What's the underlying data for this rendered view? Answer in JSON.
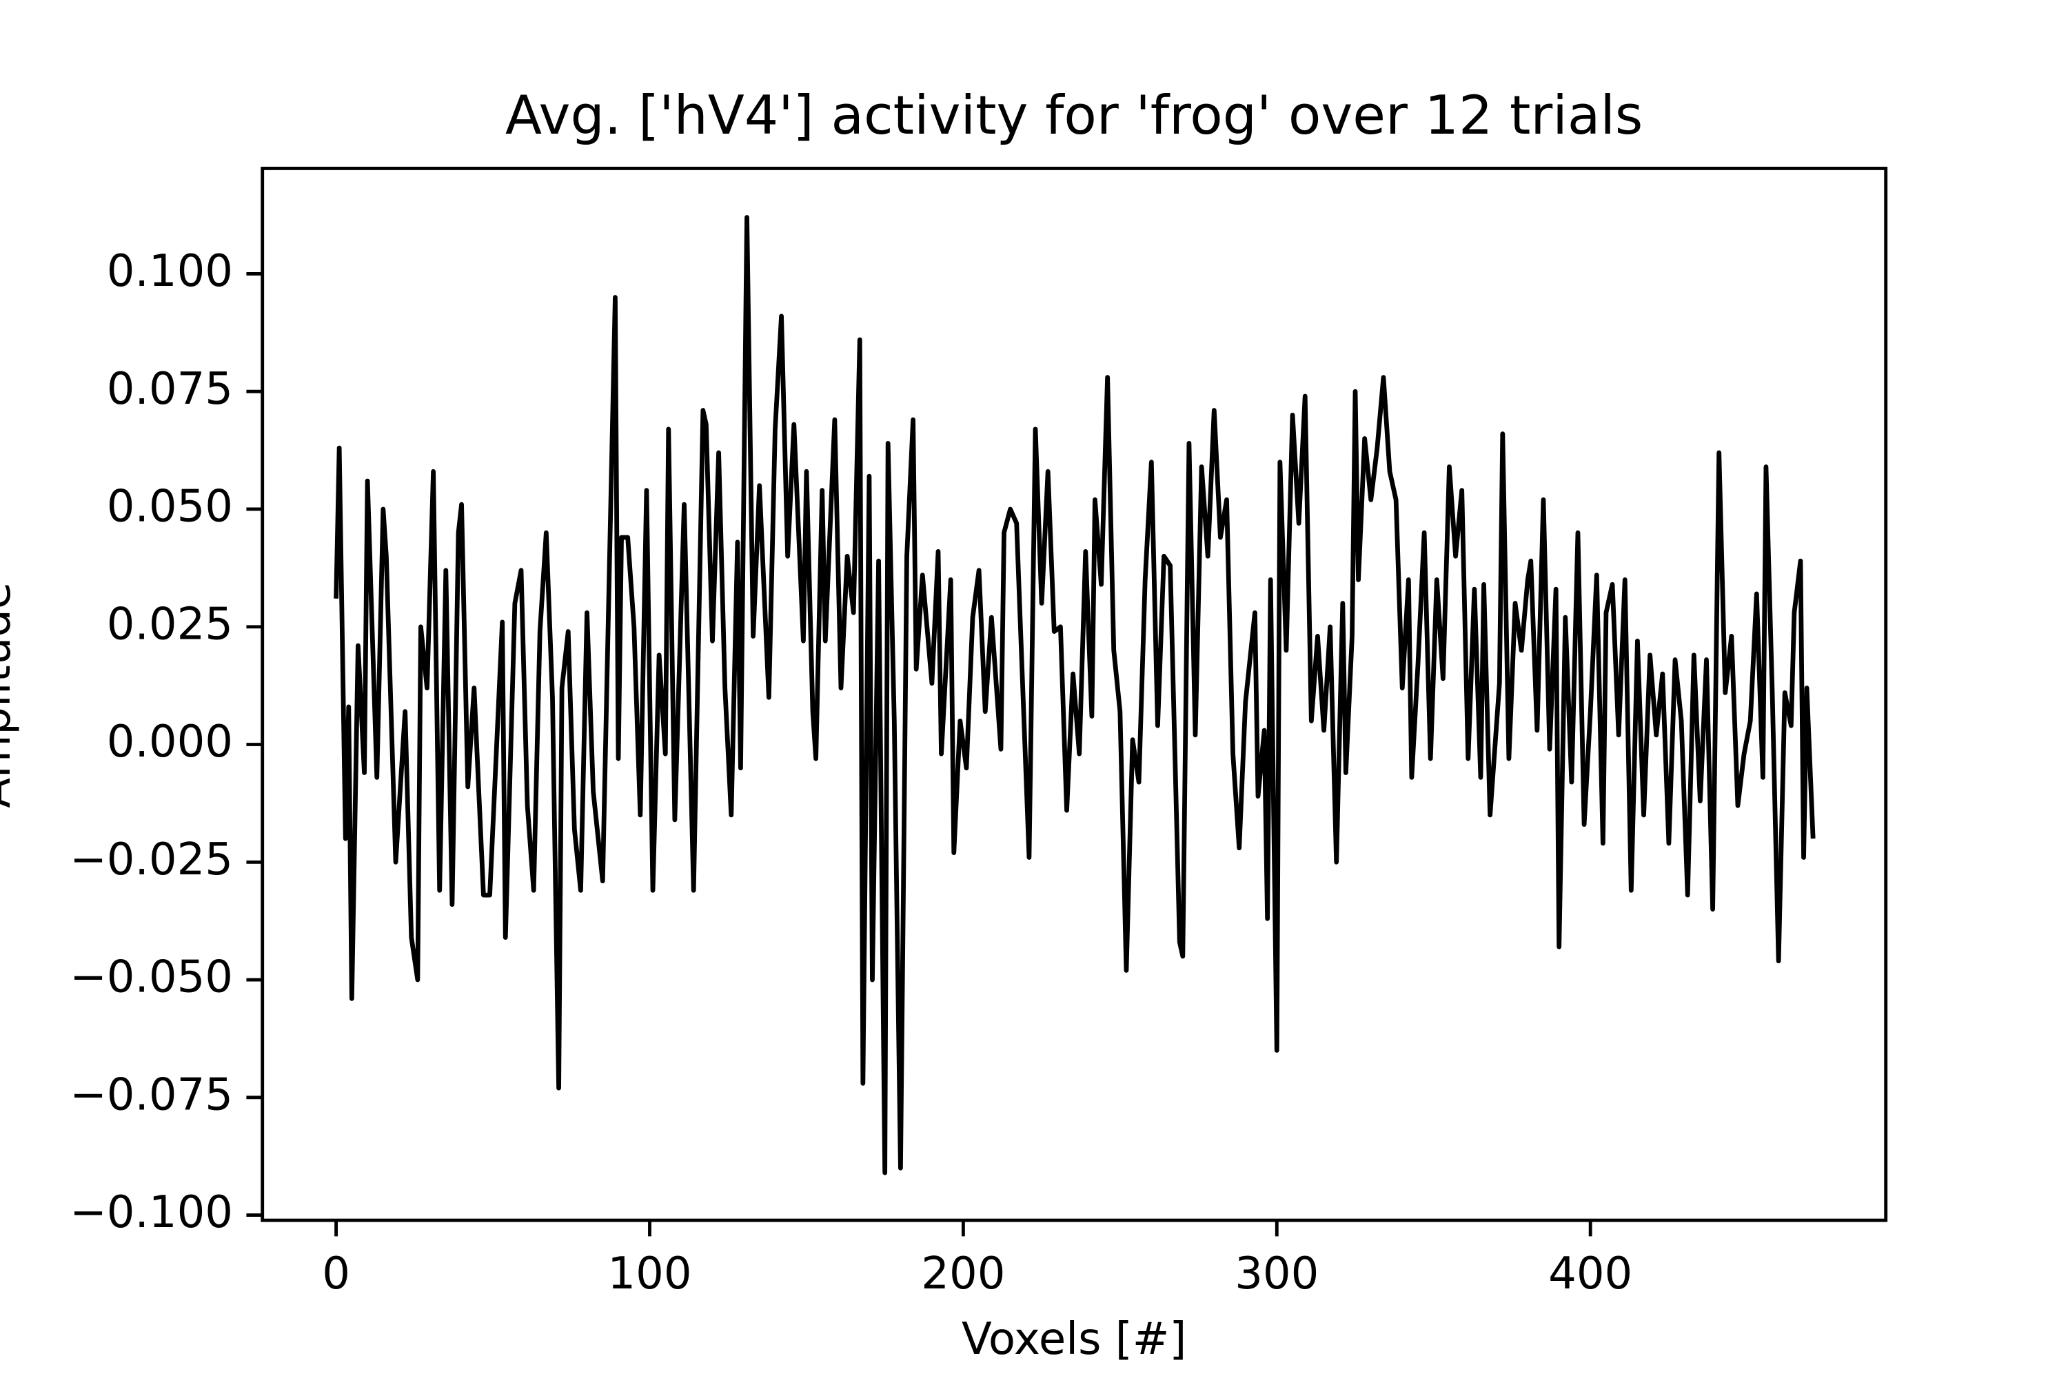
{
  "chart_data": {
    "type": "line",
    "title": "Avg. ['hV4'] activity for 'frog' over 12 trials",
    "xlabel": "Voxels [#]",
    "ylabel": "Amplitude",
    "xlim": [
      -23.5,
      494.2
    ],
    "ylim": [
      -0.1011,
      0.1224
    ],
    "xticks": [
      0,
      100,
      200,
      300,
      400
    ],
    "yticks": [
      {
        "value": -0.1,
        "label": "−0.100"
      },
      {
        "value": -0.075,
        "label": "−0.075"
      },
      {
        "value": -0.05,
        "label": "−0.050"
      },
      {
        "value": -0.025,
        "label": "−0.025"
      },
      {
        "value": 0,
        "label": "0.000"
      },
      {
        "value": 0.025,
        "label": "0.025"
      },
      {
        "value": 0.05,
        "label": "0.050"
      },
      {
        "value": 0.075,
        "label": "0.075"
      },
      {
        "value": 0.1,
        "label": "0.100"
      }
    ],
    "color": "#000000",
    "x": [
      0,
      1,
      3,
      4,
      5,
      7,
      9,
      10,
      13,
      15,
      16,
      19,
      22,
      24,
      26,
      27,
      29,
      31,
      33,
      35,
      37,
      39,
      40,
      42,
      44,
      47,
      49,
      53,
      54,
      57,
      59,
      61,
      63,
      65,
      67,
      69,
      71,
      72,
      74,
      76,
      78,
      80,
      82,
      85,
      89,
      90,
      91,
      93,
      95,
      97,
      99,
      101,
      103,
      105,
      106,
      108,
      111,
      114,
      117,
      118,
      120,
      122,
      124,
      126,
      128,
      129,
      131,
      133,
      135,
      138,
      140,
      142,
      144,
      146,
      149,
      150,
      152,
      153,
      155,
      156,
      159,
      161,
      163,
      165,
      167,
      168,
      170,
      171,
      173,
      175,
      176,
      178,
      180,
      182,
      184,
      185,
      187,
      190,
      192,
      193,
      196,
      197,
      199,
      201,
      203,
      205,
      207,
      209,
      212,
      213,
      215,
      217,
      221,
      223,
      225,
      227,
      229,
      231,
      233,
      235,
      237,
      239,
      241,
      242,
      244,
      246,
      248,
      250,
      252,
      254,
      256,
      258,
      260,
      262,
      264,
      266,
      269,
      270,
      272,
      274,
      276,
      278,
      280,
      282,
      284,
      286,
      288,
      290,
      293,
      294,
      296,
      297,
      298,
      300,
      301,
      303,
      305,
      307,
      309,
      311,
      313,
      315,
      317,
      319,
      321,
      322,
      324,
      325,
      326,
      328,
      330,
      332,
      334,
      336,
      338,
      340,
      342,
      343,
      345,
      347,
      349,
      351,
      353,
      355,
      357,
      359,
      361,
      363,
      365,
      366,
      368,
      371,
      372,
      374,
      376,
      378,
      380,
      381,
      383,
      385,
      387,
      389,
      390,
      392,
      394,
      396,
      398,
      400,
      402,
      404,
      405,
      407,
      409,
      411,
      413,
      415,
      417,
      419,
      421,
      423,
      425,
      427,
      429,
      431,
      433,
      435,
      437,
      439,
      441,
      443,
      445,
      447,
      449,
      451,
      453,
      455,
      456,
      458,
      460,
      462,
      464,
      465,
      467,
      468,
      469,
      471
    ],
    "values": [
      0.031,
      0.063,
      -0.02,
      0.008,
      -0.054,
      0.021,
      -0.006,
      0.056,
      -0.007,
      0.05,
      0.04,
      -0.025,
      0.007,
      -0.041,
      -0.05,
      0.025,
      0.012,
      0.058,
      -0.031,
      0.037,
      -0.034,
      0.045,
      0.051,
      -0.009,
      0.012,
      -0.032,
      -0.032,
      0.026,
      -0.041,
      0.03,
      0.037,
      -0.013,
      -0.031,
      0.024,
      0.045,
      0.01,
      -0.073,
      0.012,
      0.024,
      -0.018,
      -0.031,
      0.028,
      -0.01,
      -0.029,
      0.095,
      -0.003,
      0.044,
      0.044,
      0.025,
      -0.015,
      0.054,
      -0.031,
      0.019,
      -0.002,
      0.067,
      -0.016,
      0.051,
      -0.031,
      0.071,
      0.068,
      0.022,
      0.062,
      0.012,
      -0.015,
      0.043,
      -0.005,
      0.112,
      0.023,
      0.055,
      0.01,
      0.067,
      0.091,
      0.04,
      0.068,
      0.022,
      0.058,
      0.007,
      -0.003,
      0.054,
      0.022,
      0.069,
      0.012,
      0.04,
      0.028,
      0.086,
      -0.072,
      0.057,
      -0.05,
      0.039,
      -0.091,
      0.064,
      0.005,
      -0.09,
      0.04,
      0.069,
      0.016,
      0.036,
      0.013,
      0.041,
      -0.002,
      0.035,
      -0.023,
      0.005,
      -0.005,
      0.027,
      0.037,
      0.007,
      0.027,
      -0.001,
      0.045,
      0.05,
      0.047,
      -0.024,
      0.067,
      0.03,
      0.058,
      0.024,
      0.025,
      -0.014,
      0.015,
      -0.002,
      0.041,
      0.006,
      0.052,
      0.034,
      0.078,
      0.02,
      0.007,
      -0.048,
      0.001,
      -0.008,
      0.035,
      0.06,
      0.004,
      0.04,
      0.038,
      -0.042,
      -0.045,
      0.064,
      0.002,
      0.059,
      0.04,
      0.071,
      0.044,
      0.052,
      -0.002,
      -0.022,
      0.009,
      0.028,
      -0.011,
      0.003,
      -0.037,
      0.035,
      -0.065,
      0.06,
      0.02,
      0.07,
      0.047,
      0.074,
      0.005,
      0.023,
      0.003,
      0.025,
      -0.025,
      0.03,
      -0.006,
      0.023,
      0.075,
      0.035,
      0.065,
      0.052,
      0.063,
      0.078,
      0.058,
      0.052,
      0.012,
      0.035,
      -0.007,
      0.017,
      0.045,
      -0.003,
      0.035,
      0.014,
      0.059,
      0.04,
      0.054,
      -0.003,
      0.033,
      -0.007,
      0.034,
      -0.015,
      0.013,
      0.066,
      -0.003,
      0.03,
      0.02,
      0.035,
      0.039,
      0.003,
      0.052,
      -0.001,
      0.033,
      -0.043,
      0.027,
      -0.008,
      0.045,
      -0.017,
      0.007,
      0.036,
      -0.021,
      0.028,
      0.034,
      0.002,
      0.035,
      -0.031,
      0.022,
      -0.015,
      0.019,
      0.002,
      0.015,
      -0.021,
      0.018,
      0.005,
      -0.032,
      0.019,
      -0.012,
      0.018,
      -0.035,
      0.062,
      0.011,
      0.023,
      -0.013,
      -0.002,
      0.005,
      0.032,
      -0.007,
      0.059,
      0.011,
      -0.046,
      0.011,
      0.004,
      0.028,
      0.039,
      -0.024,
      0.012,
      -0.02
    ]
  }
}
